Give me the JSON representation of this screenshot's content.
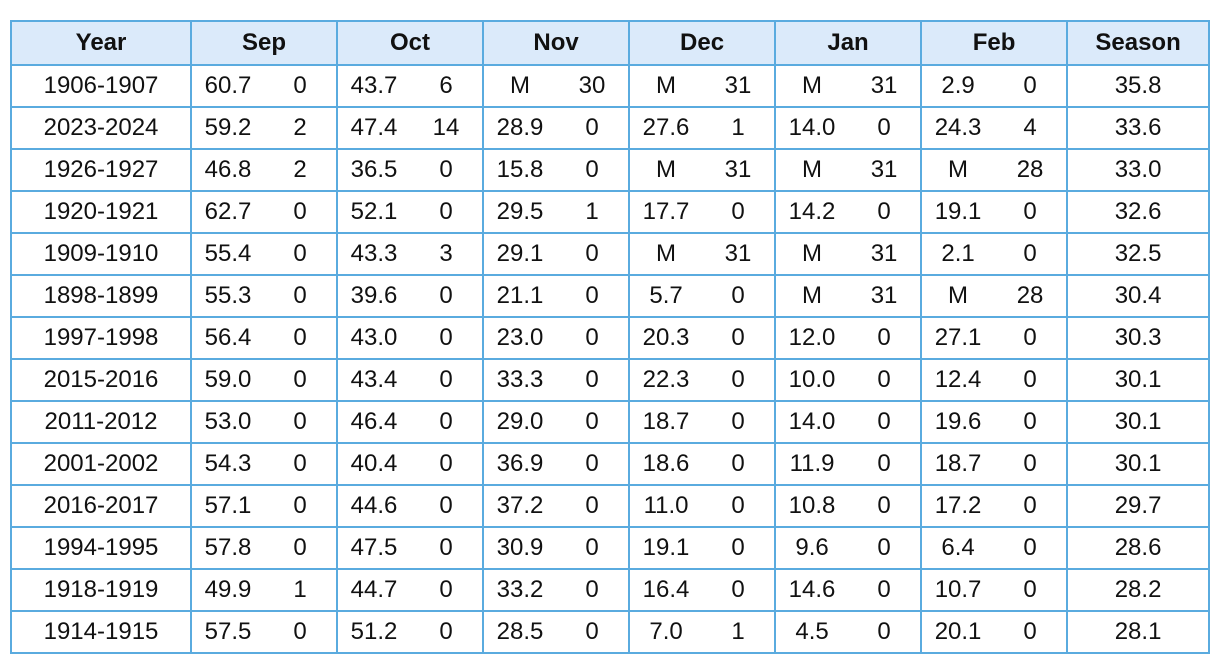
{
  "table": {
    "header": [
      "Year",
      "Sep",
      "Oct",
      "Nov",
      "Dec",
      "Jan",
      "Feb",
      "Season"
    ],
    "rows": [
      [
        "1906-1907",
        "60.7",
        "0",
        "43.7",
        "6",
        "M",
        "30",
        "M",
        "31",
        "M",
        "31",
        "2.9",
        "0",
        "35.8"
      ],
      [
        "2023-2024",
        "59.2",
        "2",
        "47.4",
        "14",
        "28.9",
        "0",
        "27.6",
        "1",
        "14.0",
        "0",
        "24.3",
        "4",
        "33.6"
      ],
      [
        "1926-1927",
        "46.8",
        "2",
        "36.5",
        "0",
        "15.8",
        "0",
        "M",
        "31",
        "M",
        "31",
        "M",
        "28",
        "33.0"
      ],
      [
        "1920-1921",
        "62.7",
        "0",
        "52.1",
        "0",
        "29.5",
        "1",
        "17.7",
        "0",
        "14.2",
        "0",
        "19.1",
        "0",
        "32.6"
      ],
      [
        "1909-1910",
        "55.4",
        "0",
        "43.3",
        "3",
        "29.1",
        "0",
        "M",
        "31",
        "M",
        "31",
        "2.1",
        "0",
        "32.5"
      ],
      [
        "1898-1899",
        "55.3",
        "0",
        "39.6",
        "0",
        "21.1",
        "0",
        "5.7",
        "0",
        "M",
        "31",
        "M",
        "28",
        "30.4"
      ],
      [
        "1997-1998",
        "56.4",
        "0",
        "43.0",
        "0",
        "23.0",
        "0",
        "20.3",
        "0",
        "12.0",
        "0",
        "27.1",
        "0",
        "30.3"
      ],
      [
        "2015-2016",
        "59.0",
        "0",
        "43.4",
        "0",
        "33.3",
        "0",
        "22.3",
        "0",
        "10.0",
        "0",
        "12.4",
        "0",
        "30.1"
      ],
      [
        "2011-2012",
        "53.0",
        "0",
        "46.4",
        "0",
        "29.0",
        "0",
        "18.7",
        "0",
        "14.0",
        "0",
        "19.6",
        "0",
        "30.1"
      ],
      [
        "2001-2002",
        "54.3",
        "0",
        "40.4",
        "0",
        "36.9",
        "0",
        "18.6",
        "0",
        "11.9",
        "0",
        "18.7",
        "0",
        "30.1"
      ],
      [
        "2016-2017",
        "57.1",
        "0",
        "44.6",
        "0",
        "37.2",
        "0",
        "11.0",
        "0",
        "10.8",
        "0",
        "17.2",
        "0",
        "29.7"
      ],
      [
        "1994-1995",
        "57.8",
        "0",
        "47.5",
        "0",
        "30.9",
        "0",
        "19.1",
        "0",
        "9.6",
        "0",
        "6.4",
        "0",
        "28.6"
      ],
      [
        "1918-1919",
        "49.9",
        "1",
        "44.7",
        "0",
        "33.2",
        "0",
        "16.4",
        "0",
        "14.6",
        "0",
        "10.7",
        "0",
        "28.2"
      ],
      [
        "1914-1915",
        "57.5",
        "0",
        "51.2",
        "0",
        "28.5",
        "0",
        "7.0",
        "1",
        "4.5",
        "0",
        "20.1",
        "0",
        "28.1"
      ]
    ]
  }
}
